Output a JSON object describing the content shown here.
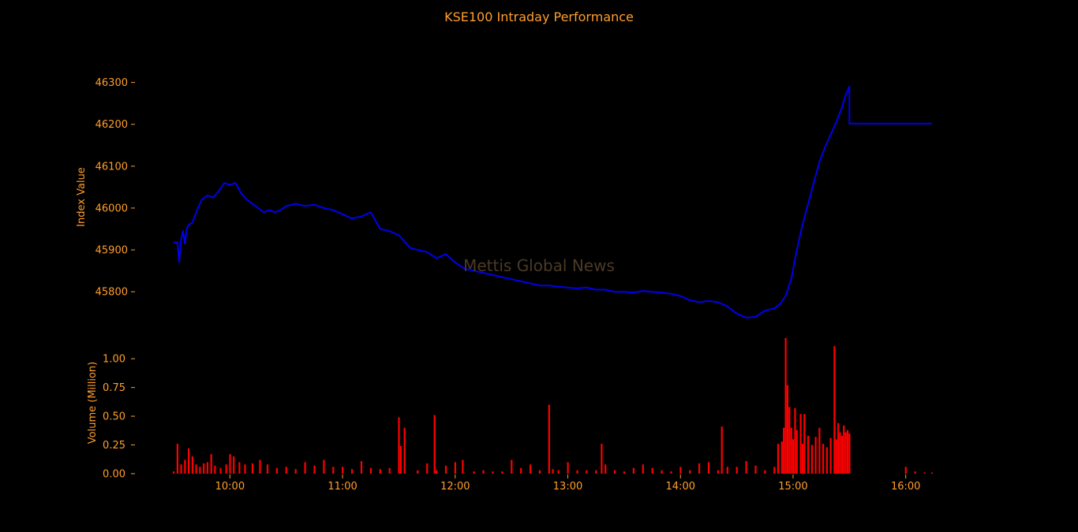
{
  "chart_data": {
    "title": "KSE100 Intraday Performance",
    "watermark": "Mettis Global News",
    "colors": {
      "background": "#000000",
      "text": "#ff9e2c",
      "index_line": "#0000ee",
      "volume_bars": "#ff0000",
      "watermark": "#4a3a28"
    },
    "x_ticks": [
      "10:00",
      "11:00",
      "12:00",
      "13:00",
      "14:00",
      "15:00",
      "16:00"
    ],
    "panels": [
      {
        "id": "index",
        "type": "line",
        "ylabel": "Index Value",
        "yticks": [
          45800,
          45900,
          46000,
          46100,
          46200,
          46300
        ],
        "ylim": [
          45725,
          46320
        ],
        "xlim": [
          "09:30",
          "16:14"
        ],
        "series": [
          {
            "x": [
              "09:30",
              "09:32",
              "09:33",
              "09:34",
              "09:35",
              "09:36",
              "09:37",
              "09:38",
              "09:40",
              "09:42",
              "09:45",
              "09:48",
              "09:51",
              "09:54",
              "09:57",
              "10:00",
              "10:03",
              "10:06",
              "10:09",
              "10:12",
              "10:15",
              "10:18",
              "10:21",
              "10:24",
              "10:27",
              "10:30",
              "10:35",
              "10:40",
              "10:45",
              "10:50",
              "10:55",
              "11:00",
              "11:05",
              "11:10",
              "11:15",
              "11:20",
              "11:25",
              "11:30",
              "11:33",
              "11:36",
              "11:40",
              "11:45",
              "11:50",
              "11:55",
              "12:00",
              "12:05",
              "12:10",
              "12:15",
              "12:20",
              "12:25",
              "12:30",
              "12:35",
              "12:40",
              "12:45",
              "12:50",
              "12:55",
              "13:00",
              "13:05",
              "13:10",
              "13:15",
              "13:20",
              "13:25",
              "13:30",
              "13:35",
              "13:40",
              "13:45",
              "13:50",
              "13:55",
              "14:00",
              "14:05",
              "14:10",
              "14:15",
              "14:20",
              "14:25",
              "14:30",
              "14:35",
              "14:40",
              "14:45",
              "14:50",
              "14:53",
              "14:56",
              "14:59",
              "15:02",
              "15:05",
              "15:08",
              "15:11",
              "15:14",
              "15:17",
              "15:20",
              "15:23",
              "15:26",
              "15:28",
              "15:30",
              "15:30",
              "16:14"
            ],
            "y": [
              45918,
              45918,
              45870,
              45925,
              45945,
              45915,
              45950,
              45960,
              45965,
              45990,
              46020,
              46030,
              46025,
              46040,
              46060,
              46055,
              46060,
              46035,
              46020,
              46010,
              46000,
              45990,
              45995,
              45990,
              45995,
              46005,
              46010,
              46005,
              46008,
              46000,
              45995,
              45985,
              45975,
              45980,
              45990,
              45950,
              45945,
              45935,
              45920,
              45905,
              45900,
              45895,
              45880,
              45890,
              45870,
              45855,
              45850,
              45845,
              45840,
              45835,
              45830,
              45825,
              45820,
              45815,
              45815,
              45812,
              45810,
              45808,
              45810,
              45805,
              45805,
              45800,
              45800,
              45798,
              45802,
              45800,
              45798,
              45795,
              45790,
              45780,
              45775,
              45778,
              45775,
              45765,
              45748,
              45738,
              45740,
              45755,
              45760,
              45770,
              45790,
              45830,
              45900,
              45960,
              46010,
              46060,
              46110,
              46145,
              46175,
              46205,
              46240,
              46270,
              46290,
              46202,
              46202
            ]
          }
        ]
      },
      {
        "id": "volume",
        "type": "bar",
        "ylabel": "Volume (Million)",
        "yticks": [
          "0.00",
          "0.25",
          "0.50",
          "0.75",
          "1.00"
        ],
        "ylim": [
          0,
          1.2
        ],
        "xlim": [
          "09:30",
          "16:14"
        ],
        "series": [
          {
            "x": [
              "09:30",
              "09:32",
              "09:34",
              "09:36",
              "09:38",
              "09:40",
              "09:42",
              "09:44",
              "09:46",
              "09:48",
              "09:50",
              "09:52",
              "09:55",
              "09:58",
              "10:00",
              "10:02",
              "10:05",
              "10:08",
              "10:12",
              "10:16",
              "10:20",
              "10:25",
              "10:30",
              "10:35",
              "10:40",
              "10:45",
              "10:50",
              "10:55",
              "11:00",
              "11:05",
              "11:10",
              "11:15",
              "11:20",
              "11:25",
              "11:30",
              "11:31",
              "11:33",
              "11:40",
              "11:45",
              "11:49",
              "11:50",
              "11:55",
              "12:00",
              "12:04",
              "12:10",
              "12:15",
              "12:20",
              "12:25",
              "12:30",
              "12:35",
              "12:40",
              "12:45",
              "12:50",
              "12:52",
              "12:55",
              "13:00",
              "13:05",
              "13:10",
              "13:15",
              "13:18",
              "13:20",
              "13:25",
              "13:30",
              "13:35",
              "13:40",
              "13:45",
              "13:50",
              "13:55",
              "14:00",
              "14:05",
              "14:10",
              "14:15",
              "14:20",
              "14:22",
              "14:25",
              "14:30",
              "14:35",
              "14:40",
              "14:45",
              "14:50",
              "14:52",
              "14:54",
              "14:55",
              "14:56",
              "14:57",
              "14:58",
              "14:59",
              "15:00",
              "15:01",
              "15:02",
              "15:04",
              "15:05",
              "15:06",
              "15:08",
              "15:10",
              "15:12",
              "15:14",
              "15:16",
              "15:18",
              "15:20",
              "15:22",
              "15:23",
              "15:24",
              "15:25",
              "15:26",
              "15:27",
              "15:28",
              "15:29",
              "15:30",
              "16:00",
              "16:05",
              "16:10",
              "16:14"
            ],
            "values": [
              0.02,
              0.26,
              0.08,
              0.12,
              0.22,
              0.15,
              0.08,
              0.06,
              0.09,
              0.1,
              0.17,
              0.07,
              0.05,
              0.08,
              0.17,
              0.15,
              0.1,
              0.08,
              0.09,
              0.12,
              0.08,
              0.05,
              0.06,
              0.04,
              0.1,
              0.07,
              0.12,
              0.06,
              0.06,
              0.04,
              0.11,
              0.05,
              0.04,
              0.05,
              0.49,
              0.24,
              0.4,
              0.03,
              0.09,
              0.51,
              0.03,
              0.07,
              0.1,
              0.12,
              0.02,
              0.03,
              0.02,
              0.02,
              0.12,
              0.05,
              0.08,
              0.03,
              0.6,
              0.04,
              0.03,
              0.1,
              0.03,
              0.03,
              0.03,
              0.26,
              0.08,
              0.03,
              0.02,
              0.05,
              0.08,
              0.05,
              0.03,
              0.02,
              0.06,
              0.03,
              0.09,
              0.1,
              0.03,
              0.41,
              0.06,
              0.06,
              0.11,
              0.07,
              0.03,
              0.06,
              0.26,
              0.28,
              0.4,
              1.18,
              0.77,
              0.58,
              0.4,
              0.3,
              0.57,
              0.38,
              0.52,
              0.26,
              0.52,
              0.33,
              0.25,
              0.32,
              0.4,
              0.26,
              0.23,
              0.31,
              1.11,
              0.3,
              0.44,
              0.36,
              0.33,
              0.42,
              0.36,
              0.38,
              0.35,
              0.06,
              0.02,
              0.01,
              0.01
            ]
          }
        ]
      }
    ]
  }
}
